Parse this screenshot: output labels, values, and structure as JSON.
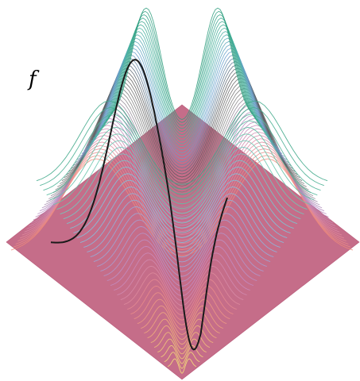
{
  "function_label": "f",
  "colors": {
    "plane": "#c56d89",
    "plane_edge": "#b85a79",
    "curve": "#1a1a1a",
    "contour_palette": [
      "#f5e17a",
      "#f0b27a",
      "#e98a8a",
      "#c58ac0",
      "#9aa7d6",
      "#7fc6e0",
      "#6ec9b0",
      "#3fa88a"
    ],
    "contour_palette_back": [
      "#f08c7a",
      "#d98aa8",
      "#b48ac2",
      "#8a8a8a",
      "#5a5a5a",
      "#6aa0d0",
      "#49b3a0",
      "#2f9e7e"
    ]
  }
}
